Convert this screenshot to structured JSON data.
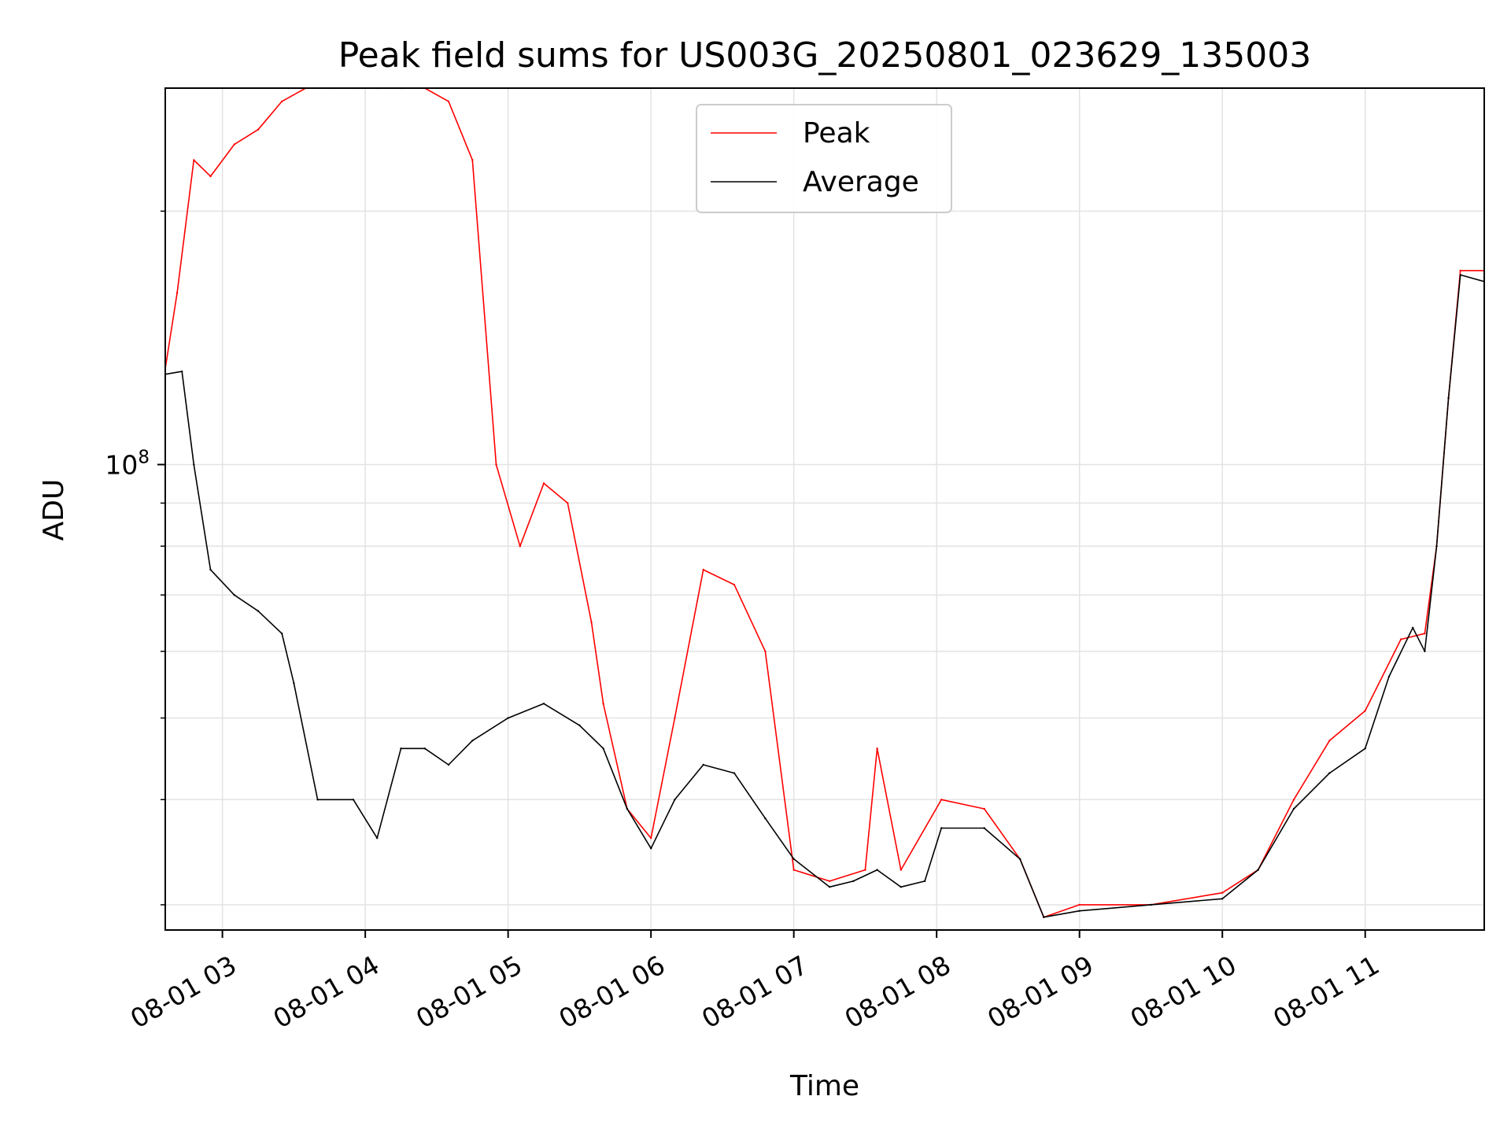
{
  "chart_data": {
    "type": "line",
    "title": "Peak field sums for US003G_20250801_023629_135003",
    "xlabel": "Time",
    "ylabel": "ADU",
    "y_scale": "log",
    "y_tick": {
      "label_base": "10",
      "label_exp": "8",
      "value": 100000000
    },
    "ylim": [
      28000000,
      280000000
    ],
    "xlim": [
      "2025-08-01 02:36",
      "2025-08-01 11:50"
    ],
    "grid": true,
    "legend_position": "top-center",
    "x_ticks": [
      {
        "label": "08-01 03",
        "time": "2025-08-01 03:00"
      },
      {
        "label": "08-01 04",
        "time": "2025-08-01 04:00"
      },
      {
        "label": "08-01 05",
        "time": "2025-08-01 05:00"
      },
      {
        "label": "08-01 06",
        "time": "2025-08-01 06:00"
      },
      {
        "label": "08-01 07",
        "time": "2025-08-01 07:00"
      },
      {
        "label": "08-01 08",
        "time": "2025-08-01 08:00"
      },
      {
        "label": "08-01 09",
        "time": "2025-08-01 09:00"
      },
      {
        "label": "08-01 10",
        "time": "2025-08-01 10:00"
      },
      {
        "label": "08-01 11",
        "time": "2025-08-01 11:00"
      }
    ],
    "series": [
      {
        "name": "Peak",
        "color": "#ff0000",
        "points": [
          [
            "2025-08-01 02:36",
            130000000
          ],
          [
            "2025-08-01 02:41",
            160000000
          ],
          [
            "2025-08-01 02:48",
            230000000
          ],
          [
            "2025-08-01 02:55",
            220000000
          ],
          [
            "2025-08-01 03:05",
            240000000
          ],
          [
            "2025-08-01 03:15",
            250000000
          ],
          [
            "2025-08-01 03:25",
            270000000
          ],
          [
            "2025-08-01 03:35",
            280000000
          ],
          [
            "2025-08-01 03:45",
            280000000
          ],
          [
            "2025-08-01 03:55",
            280000000
          ],
          [
            "2025-08-01 04:05",
            280000000
          ],
          [
            "2025-08-01 04:15",
            280000000
          ],
          [
            "2025-08-01 04:25",
            280000000
          ],
          [
            "2025-08-01 04:35",
            270000000
          ],
          [
            "2025-08-01 04:45",
            230000000
          ],
          [
            "2025-08-01 04:55",
            100000000
          ],
          [
            "2025-08-01 05:05",
            80000000
          ],
          [
            "2025-08-01 05:15",
            95000000
          ],
          [
            "2025-08-01 05:25",
            90000000
          ],
          [
            "2025-08-01 05:35",
            65000000
          ],
          [
            "2025-08-01 05:40",
            52000000
          ],
          [
            "2025-08-01 05:50",
            39000000
          ],
          [
            "2025-08-01 06:00",
            36000000
          ],
          [
            "2025-08-01 06:10",
            50000000
          ],
          [
            "2025-08-01 06:22",
            75000000
          ],
          [
            "2025-08-01 06:35",
            72000000
          ],
          [
            "2025-08-01 06:48",
            60000000
          ],
          [
            "2025-08-01 07:00",
            33000000
          ],
          [
            "2025-08-01 07:15",
            32000000
          ],
          [
            "2025-08-01 07:30",
            33000000
          ],
          [
            "2025-08-01 07:35",
            46000000
          ],
          [
            "2025-08-01 07:45",
            33000000
          ],
          [
            "2025-08-01 08:02",
            40000000
          ],
          [
            "2025-08-01 08:20",
            39000000
          ],
          [
            "2025-08-01 08:35",
            34000000
          ],
          [
            "2025-08-01 08:45",
            29000000
          ],
          [
            "2025-08-01 09:00",
            30000000
          ],
          [
            "2025-08-01 09:30",
            30000000
          ],
          [
            "2025-08-01 10:00",
            31000000
          ],
          [
            "2025-08-01 10:15",
            33000000
          ],
          [
            "2025-08-01 10:30",
            40000000
          ],
          [
            "2025-08-01 10:45",
            47000000
          ],
          [
            "2025-08-01 11:00",
            51000000
          ],
          [
            "2025-08-01 11:15",
            62000000
          ],
          [
            "2025-08-01 11:25",
            63000000
          ],
          [
            "2025-08-01 11:30",
            80000000
          ],
          [
            "2025-08-01 11:35",
            120000000
          ],
          [
            "2025-08-01 11:40",
            170000000
          ],
          [
            "2025-08-01 11:50",
            170000000
          ]
        ]
      },
      {
        "name": "Average",
        "color": "#000000",
        "points": [
          [
            "2025-08-01 02:36",
            128000000
          ],
          [
            "2025-08-01 02:43",
            129000000
          ],
          [
            "2025-08-01 02:48",
            100000000
          ],
          [
            "2025-08-01 02:55",
            75000000
          ],
          [
            "2025-08-01 03:05",
            70000000
          ],
          [
            "2025-08-01 03:15",
            67000000
          ],
          [
            "2025-08-01 03:25",
            63000000
          ],
          [
            "2025-08-01 03:30",
            55000000
          ],
          [
            "2025-08-01 03:40",
            40000000
          ],
          [
            "2025-08-01 03:55",
            40000000
          ],
          [
            "2025-08-01 04:05",
            36000000
          ],
          [
            "2025-08-01 04:15",
            46000000
          ],
          [
            "2025-08-01 04:25",
            46000000
          ],
          [
            "2025-08-01 04:35",
            44000000
          ],
          [
            "2025-08-01 04:45",
            47000000
          ],
          [
            "2025-08-01 05:00",
            50000000
          ],
          [
            "2025-08-01 05:15",
            52000000
          ],
          [
            "2025-08-01 05:30",
            49000000
          ],
          [
            "2025-08-01 05:40",
            46000000
          ],
          [
            "2025-08-01 05:50",
            39000000
          ],
          [
            "2025-08-01 06:00",
            35000000
          ],
          [
            "2025-08-01 06:10",
            40000000
          ],
          [
            "2025-08-01 06:22",
            44000000
          ],
          [
            "2025-08-01 06:35",
            43000000
          ],
          [
            "2025-08-01 06:48",
            38000000
          ],
          [
            "2025-08-01 07:00",
            34000000
          ],
          [
            "2025-08-01 07:15",
            31500000
          ],
          [
            "2025-08-01 07:25",
            32000000
          ],
          [
            "2025-08-01 07:35",
            33000000
          ],
          [
            "2025-08-01 07:45",
            31500000
          ],
          [
            "2025-08-01 07:55",
            32000000
          ],
          [
            "2025-08-01 08:02",
            37000000
          ],
          [
            "2025-08-01 08:20",
            37000000
          ],
          [
            "2025-08-01 08:35",
            34000000
          ],
          [
            "2025-08-01 08:45",
            29000000
          ],
          [
            "2025-08-01 09:00",
            29500000
          ],
          [
            "2025-08-01 09:30",
            30000000
          ],
          [
            "2025-08-01 10:00",
            30500000
          ],
          [
            "2025-08-01 10:15",
            33000000
          ],
          [
            "2025-08-01 10:30",
            39000000
          ],
          [
            "2025-08-01 10:45",
            43000000
          ],
          [
            "2025-08-01 11:00",
            46000000
          ],
          [
            "2025-08-01 11:10",
            56000000
          ],
          [
            "2025-08-01 11:20",
            64000000
          ],
          [
            "2025-08-01 11:25",
            60000000
          ],
          [
            "2025-08-01 11:30",
            80000000
          ],
          [
            "2025-08-01 11:35",
            120000000
          ],
          [
            "2025-08-01 11:40",
            168000000
          ],
          [
            "2025-08-01 11:50",
            165000000
          ]
        ]
      }
    ]
  }
}
